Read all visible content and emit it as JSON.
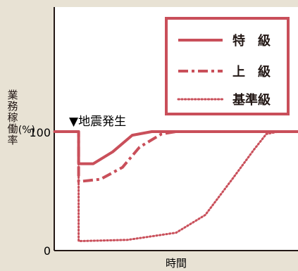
{
  "chart_data": {
    "type": "line",
    "ylabel": "業務稼働率",
    "yunit": "(%)",
    "xlabel": "時間",
    "y_ticks": [
      0,
      100
    ],
    "ylim": [
      0,
      180
    ],
    "annotation": "▼地震発生",
    "series": [
      {
        "name": "特　級",
        "style": "solid",
        "points": [
          [
            0,
            100
          ],
          [
            1,
            100
          ],
          [
            1,
            73
          ],
          [
            1.6,
            73
          ],
          [
            2.4,
            83
          ],
          [
            3.2,
            97
          ],
          [
            4,
            100
          ],
          [
            10,
            100
          ]
        ]
      },
      {
        "name": "上　級",
        "style": "dash-dot",
        "points": [
          [
            0,
            100
          ],
          [
            1,
            100
          ],
          [
            1,
            58
          ],
          [
            1.9,
            60
          ],
          [
            2.8,
            70
          ],
          [
            3.5,
            87
          ],
          [
            4.4,
            98
          ],
          [
            5,
            100
          ],
          [
            10,
            100
          ]
        ]
      },
      {
        "name": "基準級",
        "style": "dotted",
        "points": [
          [
            0,
            100
          ],
          [
            1,
            100
          ],
          [
            1,
            8
          ],
          [
            3,
            9
          ],
          [
            5,
            15
          ],
          [
            6.2,
            30
          ],
          [
            7.3,
            60
          ],
          [
            8.2,
            85
          ],
          [
            8.7,
            98
          ],
          [
            9.2,
            100
          ],
          [
            10,
            100
          ]
        ]
      }
    ],
    "grid": false,
    "legend_position": "top-right"
  },
  "colors": {
    "series": "#c94f5a",
    "background": "#e8e2d4",
    "plot_bg": "#ffffff",
    "axis": "#231815"
  }
}
